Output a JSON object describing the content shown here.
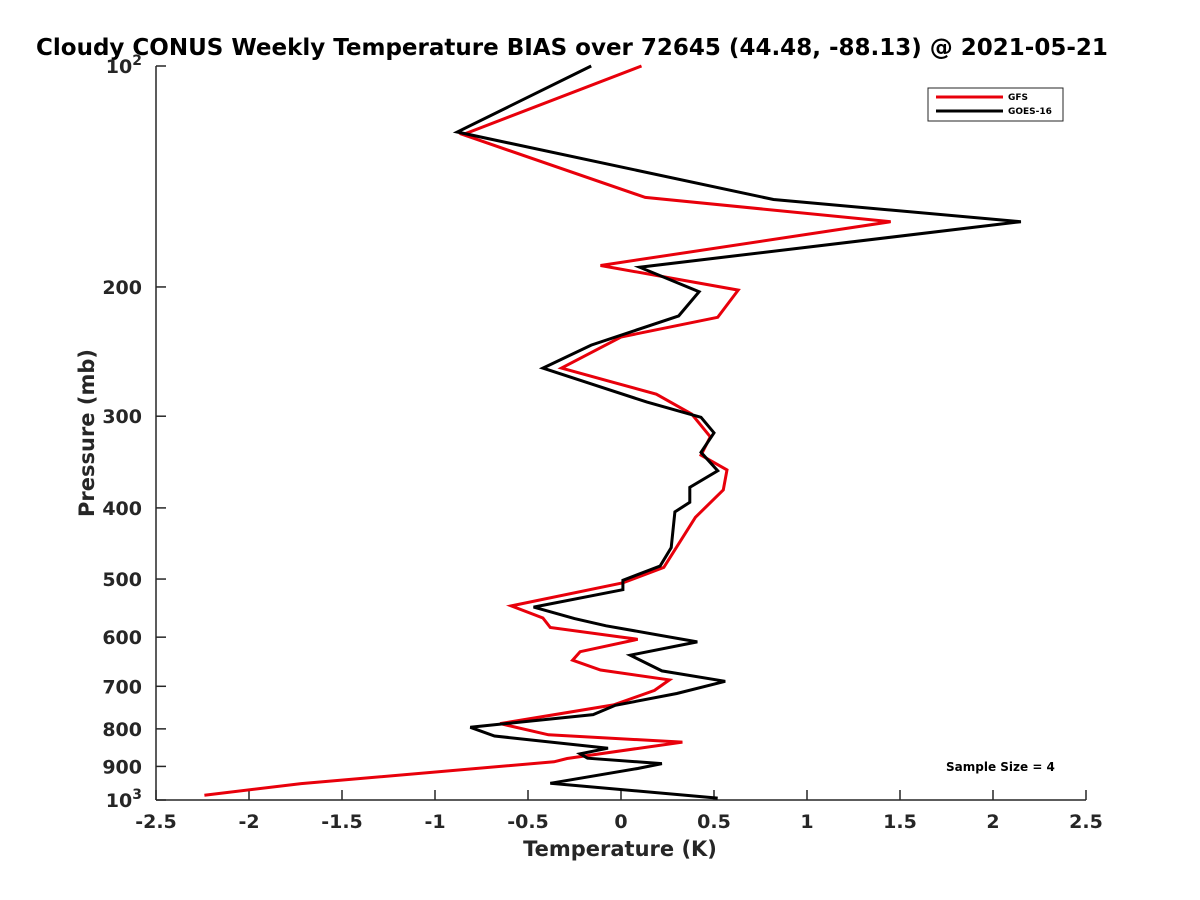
{
  "chart_data": {
    "type": "line",
    "title": "Cloudy CONUS Weekly Temperature BIAS over 72645 (44.48, -88.13) @ 2021-05-21",
    "xlabel": "Temperature (K)",
    "ylabel": "Pressure (mb)",
    "xlim": [
      -2.5,
      2.5
    ],
    "ylim": [
      100,
      1000
    ],
    "y_scale": "log",
    "y_reversed": true,
    "grid": false,
    "legend_position": "top-right",
    "x_ticks": [
      -2.5,
      -2,
      -1.5,
      -1,
      -0.5,
      0,
      0.5,
      1,
      1.5,
      2,
      2.5
    ],
    "x_tick_labels": [
      "-2.5",
      "-2",
      "-1.5",
      "-1",
      "-0.5",
      "0",
      "0.5",
      "1",
      "1.5",
      "2",
      "2.5"
    ],
    "y_ticks": [
      200,
      300,
      400,
      500,
      600,
      700,
      800,
      900
    ],
    "y_tick_labels": [
      "200",
      "300",
      "400",
      "500",
      "600",
      "700",
      "800",
      "900"
    ],
    "y_top_label": {
      "base": "10",
      "exp": "2"
    },
    "y_bottom_label": {
      "base": "10",
      "exp": "3"
    },
    "annotation": "Sample Size = 4",
    "series": [
      {
        "name": "GFS",
        "color": "#e8000b",
        "points": [
          [
            0.11,
            100
          ],
          [
            -0.85,
            124
          ],
          [
            0.13,
            151
          ],
          [
            1.45,
            163
          ],
          [
            -0.11,
            187
          ],
          [
            0.63,
            202
          ],
          [
            0.52,
            220
          ],
          [
            0.0,
            234
          ],
          [
            -0.32,
            258
          ],
          [
            0.19,
            280
          ],
          [
            0.38,
            298
          ],
          [
            0.48,
            320
          ],
          [
            0.43,
            339
          ],
          [
            0.57,
            355
          ],
          [
            0.55,
            378
          ],
          [
            0.4,
            412
          ],
          [
            0.23,
            482
          ],
          [
            0.01,
            506
          ],
          [
            -0.59,
            544
          ],
          [
            -0.42,
            565
          ],
          [
            -0.38,
            582
          ],
          [
            0.09,
            604
          ],
          [
            -0.22,
            628
          ],
          [
            -0.26,
            645
          ],
          [
            -0.11,
            665
          ],
          [
            0.26,
            686
          ],
          [
            0.18,
            709
          ],
          [
            -0.04,
            742
          ],
          [
            -0.65,
            787
          ],
          [
            -0.39,
            815
          ],
          [
            0.33,
            834
          ],
          [
            -0.29,
            878
          ],
          [
            -0.36,
            887
          ],
          [
            -1.72,
            950
          ],
          [
            -2.24,
            985
          ]
        ]
      },
      {
        "name": "GOES-16",
        "color": "#000000",
        "points": [
          [
            -0.16,
            100
          ],
          [
            -0.88,
            123
          ],
          [
            0.82,
            152
          ],
          [
            2.15,
            163
          ],
          [
            0.1,
            188
          ],
          [
            0.42,
            203
          ],
          [
            0.31,
            219
          ],
          [
            -0.16,
            240
          ],
          [
            -0.42,
            258
          ],
          [
            0.14,
            287
          ],
          [
            0.43,
            301
          ],
          [
            0.5,
            316
          ],
          [
            0.43,
            336
          ],
          [
            0.52,
            356
          ],
          [
            0.37,
            375
          ],
          [
            0.37,
            393
          ],
          [
            0.29,
            405
          ],
          [
            0.27,
            453
          ],
          [
            0.21,
            480
          ],
          [
            0.01,
            502
          ],
          [
            0.01,
            517
          ],
          [
            -0.47,
            546
          ],
          [
            -0.25,
            566
          ],
          [
            -0.08,
            579
          ],
          [
            0.41,
            609
          ],
          [
            0.05,
            635
          ],
          [
            0.22,
            667
          ],
          [
            0.56,
            689
          ],
          [
            0.3,
            716
          ],
          [
            -0.03,
            743
          ],
          [
            -0.15,
            765
          ],
          [
            -0.81,
            796
          ],
          [
            -0.68,
            818
          ],
          [
            -0.07,
            850
          ],
          [
            -0.22,
            865
          ],
          [
            -0.18,
            877
          ],
          [
            0.22,
            892
          ],
          [
            0.09,
            906
          ],
          [
            -0.38,
            949
          ],
          [
            0.52,
            994
          ]
        ]
      }
    ]
  }
}
